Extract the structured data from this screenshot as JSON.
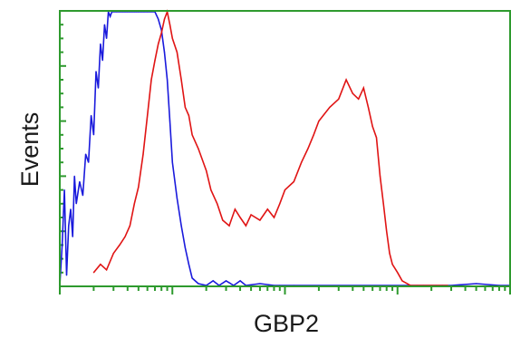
{
  "chart_data": {
    "type": "line",
    "title": "",
    "xlabel": "GBP2",
    "ylabel": "Events",
    "x_scale": "log",
    "xlim": [
      1,
      10000
    ],
    "ylim": [
      0,
      100
    ],
    "grid": false,
    "legend": "none",
    "colors": {
      "frame": "#2e9a2e",
      "ticks": "#2e9a2e",
      "text": "#1a1a1a"
    },
    "series": [
      {
        "color": "#1a1adc",
        "x": [
          1.0,
          1.05,
          1.1,
          1.15,
          1.2,
          1.25,
          1.3,
          1.35,
          1.4,
          1.5,
          1.6,
          1.7,
          1.8,
          1.9,
          2.0,
          2.1,
          2.2,
          2.3,
          2.4,
          2.5,
          2.6,
          2.7,
          2.8,
          2.9,
          3.0,
          3.2,
          3.4,
          3.6,
          3.8,
          4.0,
          4.2,
          4.4,
          4.6,
          4.8,
          5.0,
          5.3,
          5.6,
          6.0,
          6.5,
          7.0,
          7.5,
          8.0,
          8.5,
          9.0,
          9.5,
          10,
          11,
          12,
          13,
          14,
          15,
          17,
          20,
          23,
          26,
          30,
          35,
          40,
          45,
          60,
          80,
          90,
          100,
          120,
          3000,
          5000,
          8000,
          10000
        ],
        "y": [
          0,
          15,
          35,
          4,
          22,
          28,
          18,
          40,
          30,
          38,
          33,
          48,
          45,
          62,
          55,
          78,
          72,
          88,
          82,
          95,
          90,
          100,
          98,
          100,
          100,
          100,
          100,
          100,
          100,
          100,
          100,
          100,
          100,
          100,
          100,
          100,
          100,
          100,
          100,
          100,
          97,
          93,
          85,
          75,
          60,
          45,
          32,
          22,
          14,
          8,
          3,
          1,
          0,
          2,
          0,
          2,
          0,
          2,
          0,
          1,
          0,
          0,
          0,
          0,
          0,
          1,
          0,
          0
        ]
      },
      {
        "color": "#e01414",
        "x": [
          2.0,
          2.3,
          2.6,
          3.0,
          3.4,
          3.8,
          4.2,
          4.6,
          5.0,
          5.5,
          6.0,
          6.5,
          7.0,
          7.5,
          8.0,
          8.5,
          9.0,
          9.5,
          10,
          11,
          12,
          13,
          14,
          15,
          17,
          20,
          22,
          25,
          28,
          32,
          36,
          40,
          45,
          50,
          60,
          70,
          80,
          90,
          100,
          120,
          140,
          160,
          180,
          200,
          250,
          300,
          350,
          400,
          450,
          500,
          550,
          600,
          650,
          700,
          750,
          800,
          850,
          900,
          1000,
          1100,
          1300,
          1500,
          1700,
          2000,
          2200,
          2500,
          2800
        ],
        "y": [
          5,
          8,
          6,
          12,
          15,
          18,
          22,
          30,
          36,
          48,
          62,
          75,
          82,
          88,
          92,
          97,
          100,
          95,
          90,
          85,
          75,
          65,
          62,
          55,
          50,
          42,
          35,
          30,
          24,
          22,
          28,
          25,
          22,
          26,
          24,
          28,
          25,
          30,
          35,
          38,
          45,
          50,
          55,
          60,
          65,
          68,
          75,
          70,
          68,
          72,
          65,
          58,
          54,
          40,
          30,
          20,
          12,
          8,
          5,
          2,
          0,
          0,
          0,
          0,
          0,
          0,
          0
        ]
      }
    ]
  }
}
